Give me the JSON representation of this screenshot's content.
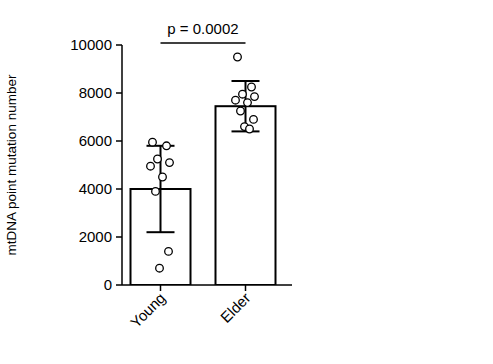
{
  "chart_data": {
    "type": "bar",
    "y_label": "mtDNA point mutation number",
    "categories": [
      "Young",
      "Elder"
    ],
    "values": [
      4000,
      7450
    ],
    "errors": [
      1800,
      1050
    ],
    "points": [
      [
        5950,
        5800,
        5250,
        5100,
        4950,
        4500,
        3900,
        1400,
        700
      ],
      [
        9500,
        8250,
        7950,
        7850,
        7700,
        7600,
        7250,
        6900,
        6600,
        6500
      ]
    ],
    "color": "#ffffff",
    "annotation": "p = 0.0002",
    "ylim": [
      0,
      10000
    ],
    "yticks": [
      0,
      2000,
      4000,
      6000,
      8000,
      10000
    ],
    "grid": false
  }
}
